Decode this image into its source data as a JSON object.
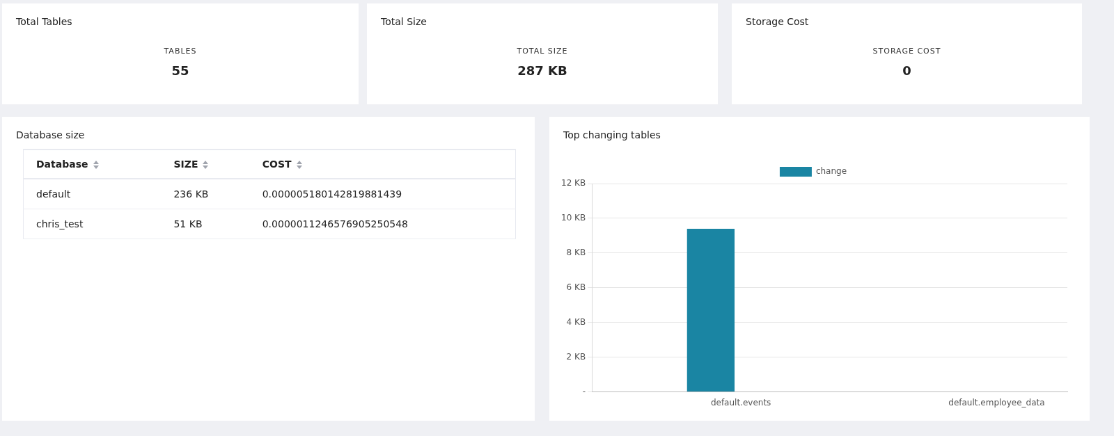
{
  "chart_data": [
    {
      "type": "other",
      "title": "Total Tables",
      "annotations": [
        "TABLES",
        "55"
      ]
    },
    {
      "type": "other",
      "title": "Total Size",
      "annotations": [
        "TOTAL SIZE",
        "287 KB"
      ]
    },
    {
      "type": "other",
      "title": "Storage Cost",
      "annotations": [
        "STORAGE COST",
        "0"
      ]
    },
    {
      "type": "other",
      "title": "Database size",
      "categories": [
        "Database",
        "SIZE",
        "COST"
      ],
      "annotations": [
        "default",
        "236 KB",
        "0.000005180142819881439",
        "chris_test",
        "51 KB",
        "0.0000011246576905250548"
      ]
    },
    {
      "type": "bar",
      "title": "Top changing tables",
      "categories": [
        "default.events",
        "default.employee_data"
      ],
      "series": [
        {
          "name": "change",
          "color": "#1a85a3",
          "values": [
            9.4,
            0
          ]
        }
      ],
      "ylim": [
        0,
        12
      ],
      "yticks": [
        {
          "value": 0,
          "label": "-"
        },
        {
          "value": 2,
          "label": "2 KB"
        },
        {
          "value": 4,
          "label": "4 KB"
        },
        {
          "value": 6,
          "label": "6 KB"
        },
        {
          "value": 8,
          "label": "8 KB"
        },
        {
          "value": 10,
          "label": "10 KB"
        },
        {
          "value": 12,
          "label": "12 KB"
        }
      ],
      "grid": "y",
      "legend": "top"
    }
  ]
}
